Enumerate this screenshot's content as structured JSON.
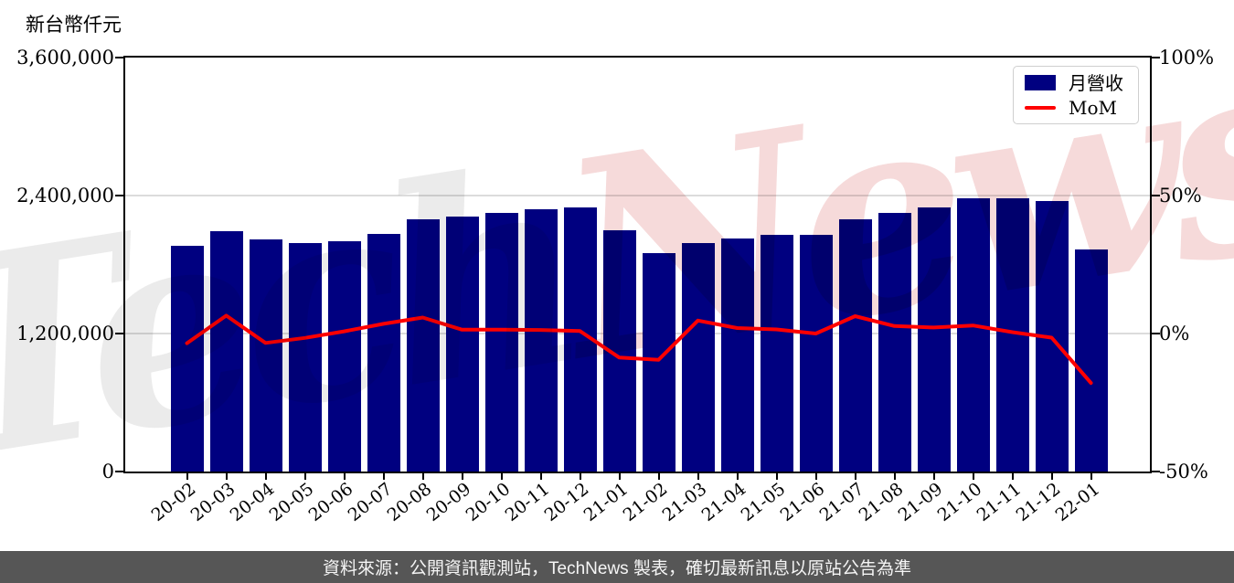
{
  "unit_label": "新台幣仟元",
  "watermark": {
    "part_gray": "Tech",
    "part_pink": "News",
    "gray_color": "#ebebeb",
    "pink_color": "#f6dada"
  },
  "legend": {
    "items": [
      {
        "label": "月營收",
        "swatch": "bar",
        "color": "#000080"
      },
      {
        "label": "MoM",
        "swatch": "line",
        "color": "#ff0000"
      }
    ]
  },
  "footer": {
    "text": "資料來源：公開資訊觀測站，TechNews 製表，確切最新訊息以原站公告為準",
    "bg_color": "#565656"
  },
  "chart_data": {
    "type": "bar",
    "title": "新台幣仟元",
    "categories": [
      "20-02",
      "20-03",
      "20-04",
      "20-05",
      "20-06",
      "20-07",
      "20-08",
      "20-09",
      "20-10",
      "20-11",
      "20-12",
      "21-01",
      "21-02",
      "21-03",
      "21-04",
      "21-05",
      "21-06",
      "21-07",
      "21-08",
      "21-09",
      "21-10",
      "21-11",
      "21-12",
      "22-01"
    ],
    "series": [
      {
        "name": "月營收",
        "type": "bar",
        "axis": "left",
        "color": "#000080",
        "unit": "新台幣仟元",
        "values": [
          1960000,
          2090000,
          2020000,
          1990000,
          2000000,
          2070000,
          2190000,
          2220000,
          2250000,
          2280000,
          2300000,
          2100000,
          1900000,
          1990000,
          2030000,
          2060000,
          2060000,
          2190000,
          2250000,
          2300000,
          2380000,
          2380000,
          2350000,
          1930000
        ]
      },
      {
        "name": "MoM",
        "type": "line",
        "axis": "right",
        "color": "#ff0000",
        "unit": "%",
        "values": [
          -3.5,
          6.5,
          -3.4,
          -1.6,
          0.8,
          3.5,
          5.8,
          1.4,
          1.4,
          1.3,
          0.9,
          -8.7,
          -9.5,
          4.7,
          2.0,
          1.5,
          0.0,
          6.3,
          2.7,
          2.2,
          2.9,
          0.5,
          -1.5,
          -17.9
        ]
      }
    ],
    "left_axis": {
      "label": "新台幣仟元",
      "tick_labels": [
        "0",
        "1,200,000",
        "2,400,000",
        "3,600,000"
      ],
      "tick_values": [
        0,
        1200000,
        2400000,
        3600000
      ],
      "range": [
        0,
        3600000
      ]
    },
    "right_axis": {
      "tick_labels": [
        "-50%",
        "0%",
        "50%",
        "100%"
      ],
      "tick_values": [
        -50,
        0,
        50,
        100
      ],
      "range": [
        -50,
        100
      ]
    },
    "grid": "horizontal",
    "legend_position": "upper right"
  }
}
